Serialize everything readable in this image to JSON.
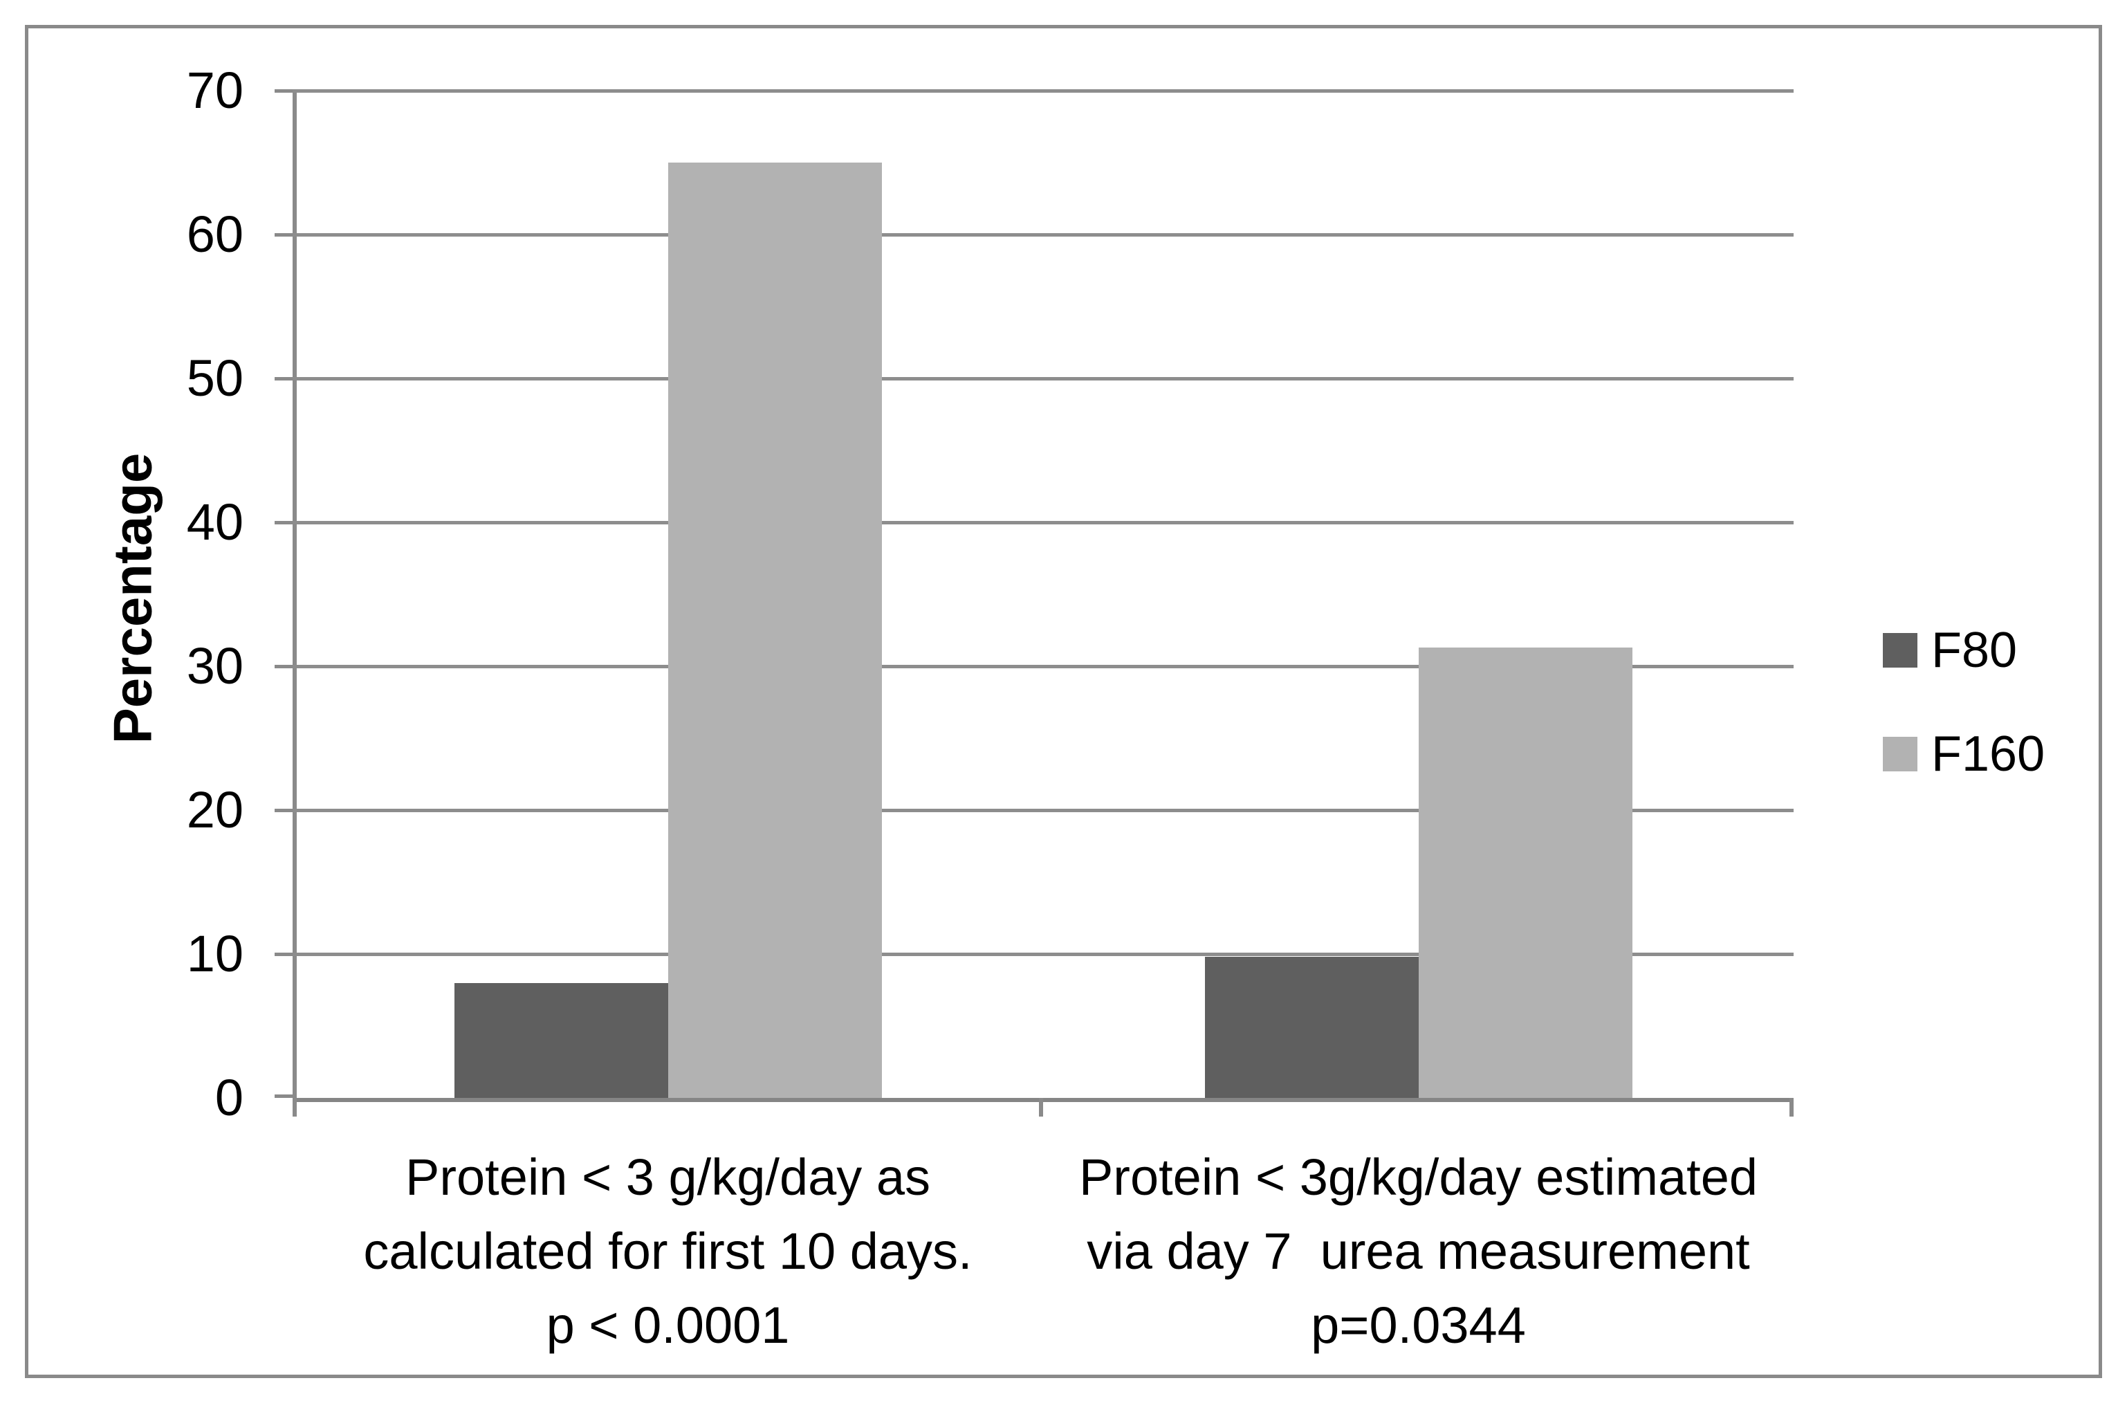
{
  "chart_data": {
    "type": "bar",
    "title": "",
    "xlabel": "",
    "ylabel": "Percentage",
    "ylim": [
      0,
      70
    ],
    "yticks": [
      0,
      10,
      20,
      30,
      40,
      50,
      60,
      70
    ],
    "grid": true,
    "legend_position": "right",
    "categories": [
      {
        "lines": [
          "Protein < 3 g/kg/day as",
          "calculated for first 10 days.",
          "p < 0.0001"
        ]
      },
      {
        "lines": [
          "Protein < 3g/kg/day estimated",
          "via day 7  urea measurement",
          "p=0.0344"
        ]
      }
    ],
    "series": [
      {
        "name": "F80",
        "color": "#5f5f5f",
        "values": [
          8,
          9.8
        ]
      },
      {
        "name": "F160",
        "color": "#b2b2b2",
        "values": [
          65,
          31.3
        ]
      }
    ]
  },
  "colors": {
    "background": "#ffffff",
    "frame_border": "#8a8a8a",
    "gridline": "#8d8d8d",
    "axis": "#858585",
    "text": "#000000"
  }
}
